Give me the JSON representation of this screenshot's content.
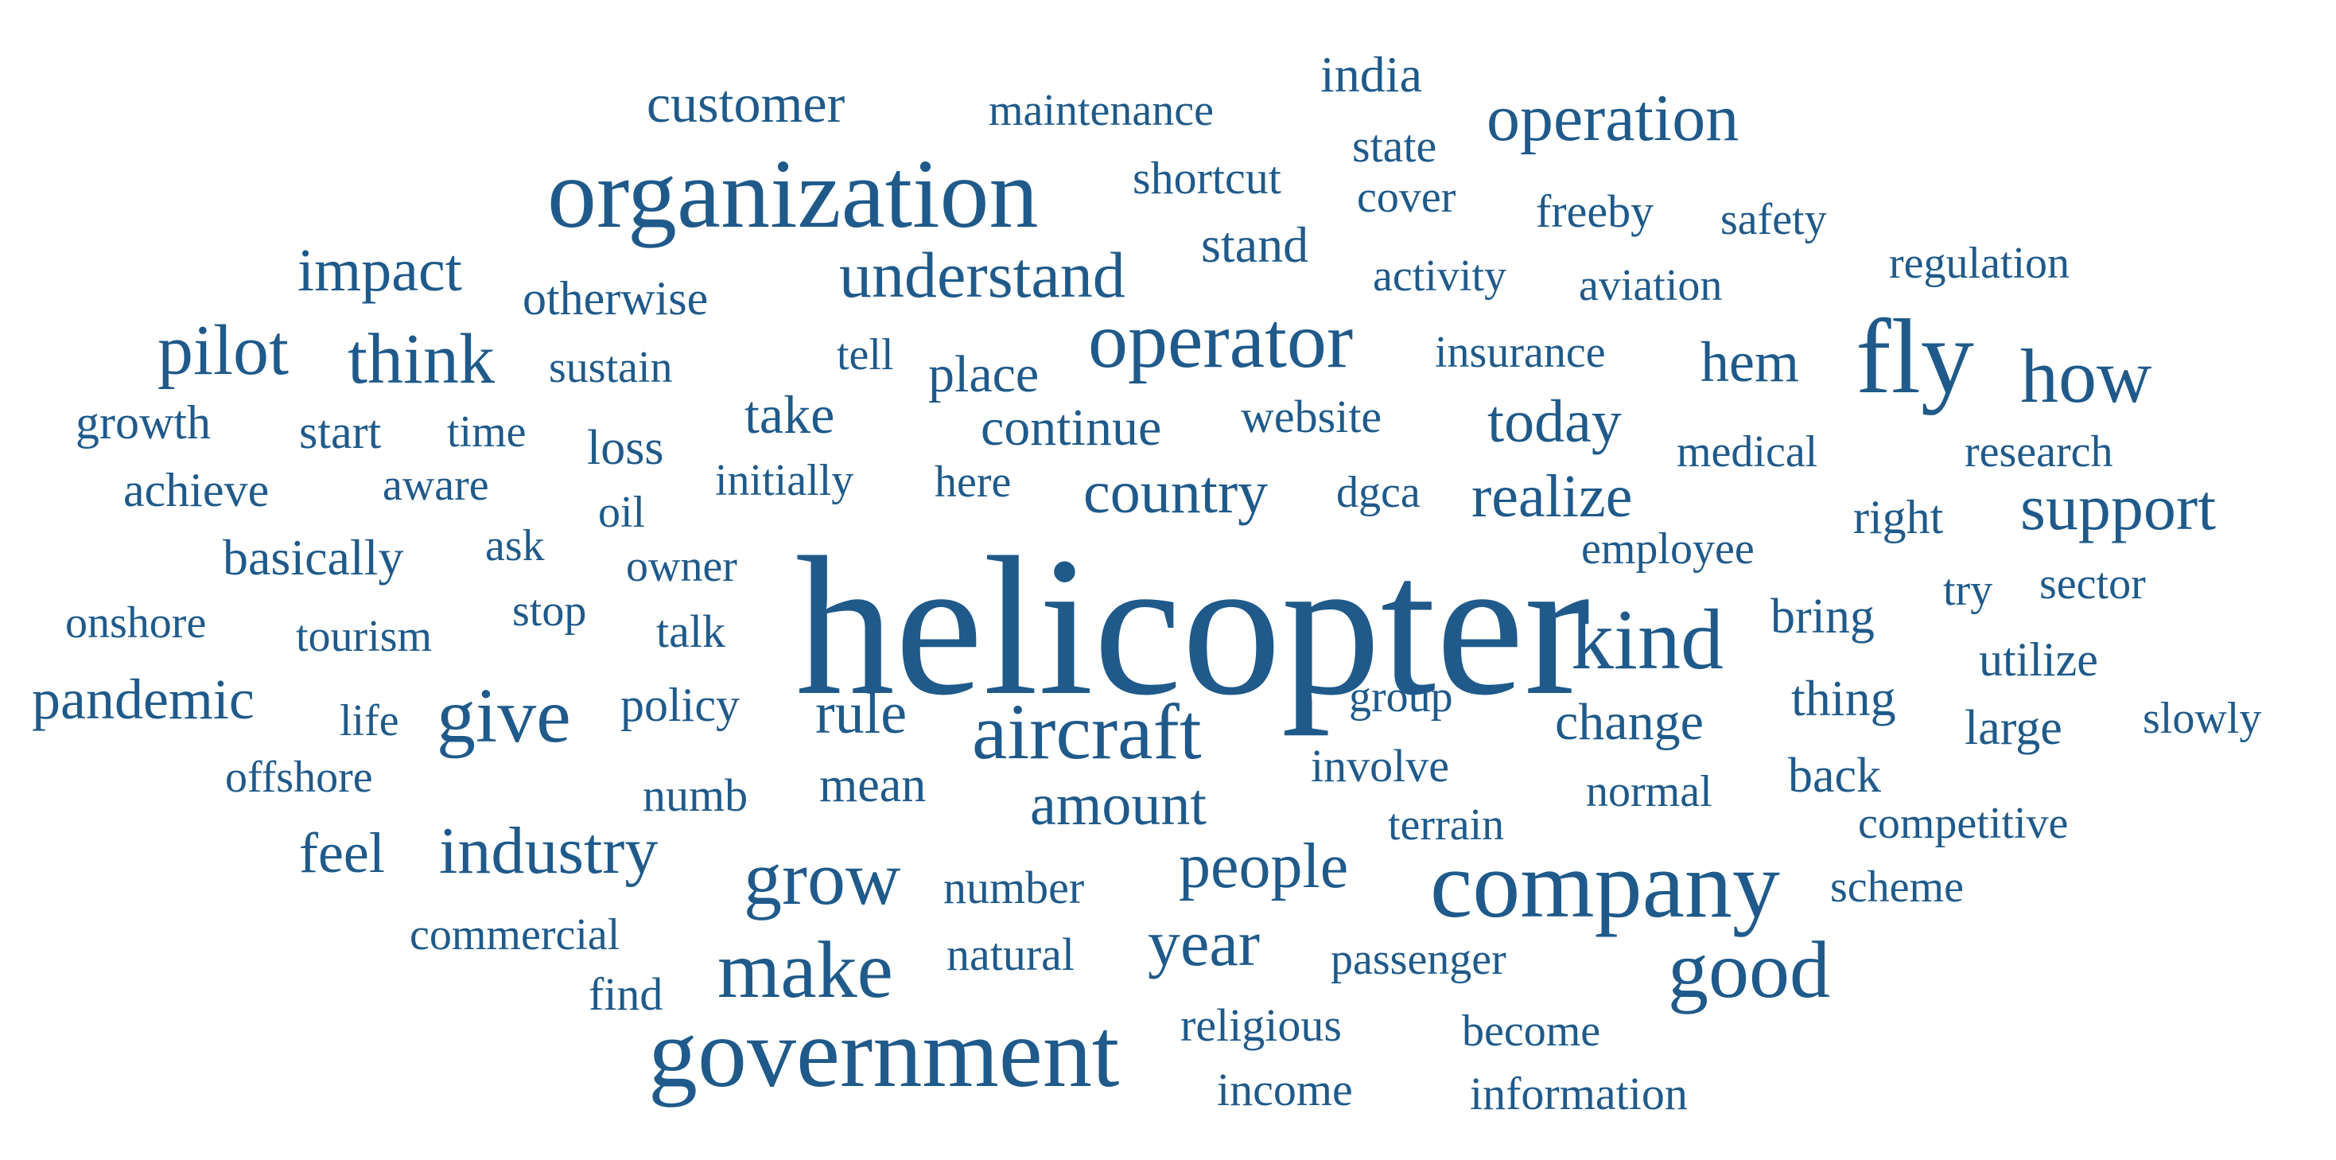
{
  "cloud": {
    "color": "#1f5a8a",
    "words": [
      {
        "text": "helicopter",
        "weight": 10
      },
      {
        "text": "organization",
        "weight": 5.5
      },
      {
        "text": "government",
        "weight": 5.5
      },
      {
        "text": "company",
        "weight": 5.5
      },
      {
        "text": "fly",
        "weight": 6
      },
      {
        "text": "operator",
        "weight": 4.6
      },
      {
        "text": "aircraft",
        "weight": 4.6
      },
      {
        "text": "kind",
        "weight": 5
      },
      {
        "text": "make",
        "weight": 4.8
      },
      {
        "text": "good",
        "weight": 4.8
      },
      {
        "text": "give",
        "weight": 4.6
      },
      {
        "text": "grow",
        "weight": 4.4
      },
      {
        "text": "how",
        "weight": 4.4
      },
      {
        "text": "pilot",
        "weight": 4.2
      },
      {
        "text": "think",
        "weight": 4.2
      },
      {
        "text": "operation",
        "weight": 4
      },
      {
        "text": "industry",
        "weight": 4
      },
      {
        "text": "understand",
        "weight": 3.9
      },
      {
        "text": "support",
        "weight": 3.9
      },
      {
        "text": "year",
        "weight": 3.9
      },
      {
        "text": "people",
        "weight": 3.8
      },
      {
        "text": "impact",
        "weight": 3.6
      },
      {
        "text": "country",
        "weight": 3.6
      },
      {
        "text": "realize",
        "weight": 3.6
      },
      {
        "text": "today",
        "weight": 3.6
      },
      {
        "text": "amount",
        "weight": 3.5
      },
      {
        "text": "rule",
        "weight": 3.5
      },
      {
        "text": "pandemic",
        "weight": 3.4
      },
      {
        "text": "hem",
        "weight": 3.4
      },
      {
        "text": "feel",
        "weight": 3.4
      },
      {
        "text": "customer",
        "weight": 3.2
      },
      {
        "text": "take",
        "weight": 3.2
      },
      {
        "text": "place",
        "weight": 3.1
      },
      {
        "text": "continue",
        "weight": 3.1
      },
      {
        "text": "change",
        "weight": 3.1
      },
      {
        "text": "thing",
        "weight": 3
      },
      {
        "text": "india",
        "weight": 3
      },
      {
        "text": "stand",
        "weight": 3
      },
      {
        "text": "basically",
        "weight": 3
      },
      {
        "text": "bring",
        "weight": 2.9
      },
      {
        "text": "large",
        "weight": 2.9
      },
      {
        "text": "back",
        "weight": 2.9
      },
      {
        "text": "mean",
        "weight": 2.9
      },
      {
        "text": "loss",
        "weight": 2.9
      },
      {
        "text": "utilize",
        "weight": 2.8
      },
      {
        "text": "policy",
        "weight": 2.8
      },
      {
        "text": "right",
        "weight": 2.8
      },
      {
        "text": "otherwise",
        "weight": 2.8
      },
      {
        "text": "growth",
        "weight": 2.8
      },
      {
        "text": "start",
        "weight": 2.8
      },
      {
        "text": "achieve",
        "weight": 2.8
      },
      {
        "text": "shortcut",
        "weight": 2.7
      },
      {
        "text": "state",
        "weight": 2.7
      },
      {
        "text": "freeby",
        "weight": 2.7
      },
      {
        "text": "website",
        "weight": 2.7
      },
      {
        "text": "numb",
        "weight": 2.7
      },
      {
        "text": "religious",
        "weight": 2.7
      },
      {
        "text": "income",
        "weight": 2.7
      },
      {
        "text": "information",
        "weight": 2.7
      },
      {
        "text": "talk",
        "weight": 2.7
      },
      {
        "text": "involve",
        "weight": 2.7
      },
      {
        "text": "number",
        "weight": 2.7
      },
      {
        "text": "natural",
        "weight": 2.7
      },
      {
        "text": "find",
        "weight": 2.7
      },
      {
        "text": "sustain",
        "weight": 2.6
      },
      {
        "text": "time",
        "weight": 2.6
      },
      {
        "text": "aware",
        "weight": 2.6
      },
      {
        "text": "tourism",
        "weight": 2.6
      },
      {
        "text": "onshore",
        "weight": 2.6
      },
      {
        "text": "commercial",
        "weight": 2.6
      },
      {
        "text": "medical",
        "weight": 2.6
      },
      {
        "text": "research",
        "weight": 2.6
      },
      {
        "text": "cover",
        "weight": 2.6
      },
      {
        "text": "safety",
        "weight": 2.6
      },
      {
        "text": "aviation",
        "weight": 2.6
      },
      {
        "text": "activity",
        "weight": 2.6
      },
      {
        "text": "insurance",
        "weight": 2.6
      },
      {
        "text": "regulation",
        "weight": 2.6
      },
      {
        "text": "tell",
        "weight": 2.6
      },
      {
        "text": "dgca",
        "weight": 2.6
      },
      {
        "text": "employee",
        "weight": 2.6
      },
      {
        "text": "initially",
        "weight": 2.6
      },
      {
        "text": "here",
        "weight": 2.6
      },
      {
        "text": "owner",
        "weight": 2.6
      },
      {
        "text": "stop",
        "weight": 2.6
      },
      {
        "text": "oil",
        "weight": 2.6
      },
      {
        "text": "ask",
        "weight": 2.6
      },
      {
        "text": "life",
        "weight": 2.6
      },
      {
        "text": "offshore",
        "weight": 2.6
      },
      {
        "text": "group",
        "weight": 2.6
      },
      {
        "text": "terrain",
        "weight": 2.6
      },
      {
        "text": "normal",
        "weight": 2.6
      },
      {
        "text": "competitive",
        "weight": 2.6
      },
      {
        "text": "scheme",
        "weight": 2.6
      },
      {
        "text": "passenger",
        "weight": 2.6
      },
      {
        "text": "become",
        "weight": 2.6
      },
      {
        "text": "try",
        "weight": 2.6
      },
      {
        "text": "sector",
        "weight": 2.6
      },
      {
        "text": "slowly",
        "weight": 2.6
      },
      {
        "text": "maintenance",
        "weight": 2.6
      }
    ]
  }
}
